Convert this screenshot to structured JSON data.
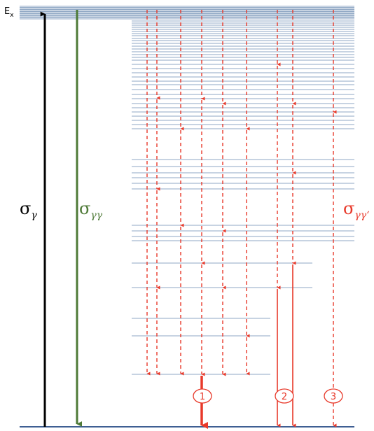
{
  "energy_label": "E",
  "energy_subscript": "x",
  "sigma_symbol": "σ",
  "cross_sections": [
    {
      "subscript": "γ",
      "color": "#000000"
    },
    {
      "subscript": "γγ",
      "color": "#4e7a37"
    },
    {
      "subscript": "γγ‘",
      "color": "#e8392a"
    }
  ],
  "branch_numbers": [
    "1",
    "2",
    "3"
  ],
  "colors": {
    "level": "#8fa7c4",
    "ground": "#3f5f93",
    "gamma_absorption": "#000000",
    "elastic": "#4e7a37",
    "inelastic": "#e8392a"
  }
}
